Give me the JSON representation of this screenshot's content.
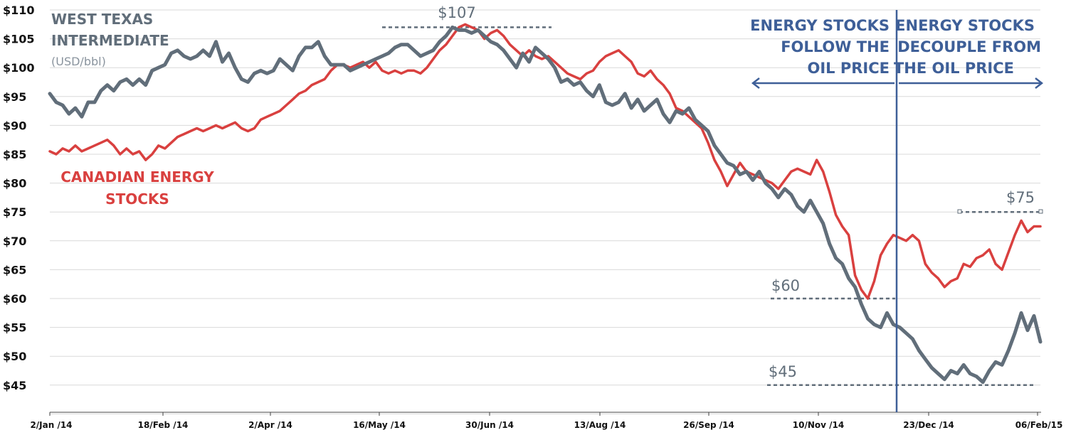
{
  "chart_data": {
    "type": "line",
    "ylim": [
      40,
      110
    ],
    "y_ticks": [
      "$110",
      "$105",
      "$100",
      "$95",
      "$90",
      "$85",
      "$80",
      "$75",
      "$70",
      "$65",
      "$60",
      "$55",
      "$50",
      "$45"
    ],
    "x_ticks": [
      "2/Jan /14",
      "18/Feb /14",
      "2/Apr /14",
      "16/May /14",
      "30/Jun /14",
      "13/Aug /14",
      "26/Sep /14",
      "10/Nov /14",
      "23/Dec /14",
      "06/Feb/15"
    ],
    "grid": true,
    "series": [
      {
        "name": "WEST TEXAS INTERMEDIATE",
        "unit": "(USD/bbl)",
        "color": "#616e7a",
        "values": [
          [
            0,
            95.5
          ],
          [
            2,
            94
          ],
          [
            4,
            93.5
          ],
          [
            6,
            92
          ],
          [
            8,
            93
          ],
          [
            10,
            91.5
          ],
          [
            12,
            94
          ],
          [
            14,
            94
          ],
          [
            16,
            96
          ],
          [
            18,
            97
          ],
          [
            20,
            96
          ],
          [
            22,
            97.5
          ],
          [
            24,
            98
          ],
          [
            26,
            97
          ],
          [
            28,
            98
          ],
          [
            30,
            97
          ],
          [
            32,
            99.5
          ],
          [
            34,
            100
          ],
          [
            36,
            100.5
          ],
          [
            38,
            102.5
          ],
          [
            40,
            103
          ],
          [
            42,
            102
          ],
          [
            44,
            101.5
          ],
          [
            46,
            102
          ],
          [
            48,
            103
          ],
          [
            50,
            102
          ],
          [
            52,
            104.5
          ],
          [
            54,
            101
          ],
          [
            56,
            102.5
          ],
          [
            58,
            100
          ],
          [
            60,
            98
          ],
          [
            62,
            97.5
          ],
          [
            64,
            99
          ],
          [
            66,
            99.5
          ],
          [
            68,
            99
          ],
          [
            70,
            99.5
          ],
          [
            72,
            101.5
          ],
          [
            74,
            100.5
          ],
          [
            76,
            99.5
          ],
          [
            78,
            102
          ],
          [
            80,
            103.5
          ],
          [
            82,
            103.5
          ],
          [
            84,
            104.5
          ],
          [
            86,
            102
          ],
          [
            88,
            100.5
          ],
          [
            90,
            100.5
          ],
          [
            92,
            100.5
          ],
          [
            94,
            99.5
          ],
          [
            96,
            100
          ],
          [
            98,
            100.5
          ],
          [
            100,
            101
          ],
          [
            102,
            101.5
          ],
          [
            104,
            102
          ],
          [
            106,
            102.5
          ],
          [
            108,
            103.5
          ],
          [
            110,
            104
          ],
          [
            112,
            104
          ],
          [
            114,
            103
          ],
          [
            116,
            102
          ],
          [
            118,
            102.5
          ],
          [
            120,
            103
          ],
          [
            122,
            104.5
          ],
          [
            124,
            105.5
          ],
          [
            126,
            107
          ],
          [
            128,
            106.5
          ],
          [
            130,
            106.5
          ],
          [
            132,
            106
          ],
          [
            134,
            106.5
          ],
          [
            136,
            105.5
          ],
          [
            138,
            104.5
          ],
          [
            140,
            104
          ],
          [
            142,
            103
          ],
          [
            144,
            101.5
          ],
          [
            146,
            100
          ],
          [
            148,
            102.5
          ],
          [
            150,
            101
          ],
          [
            152,
            103.5
          ],
          [
            154,
            102.5
          ],
          [
            156,
            101.5
          ],
          [
            158,
            100
          ],
          [
            160,
            97.5
          ],
          [
            162,
            98
          ],
          [
            164,
            97
          ],
          [
            166,
            97.5
          ],
          [
            168,
            96
          ],
          [
            170,
            95
          ],
          [
            172,
            97
          ],
          [
            174,
            94
          ],
          [
            176,
            93.5
          ],
          [
            178,
            94
          ],
          [
            180,
            95.5
          ],
          [
            182,
            93
          ],
          [
            184,
            94.5
          ],
          [
            186,
            92.5
          ],
          [
            188,
            93.5
          ],
          [
            190,
            94.5
          ],
          [
            192,
            92
          ],
          [
            194,
            90.5
          ],
          [
            196,
            92.5
          ],
          [
            198,
            92
          ],
          [
            200,
            93
          ],
          [
            202,
            91
          ],
          [
            204,
            90
          ],
          [
            206,
            89
          ],
          [
            208,
            86.5
          ],
          [
            210,
            85
          ],
          [
            212,
            83.5
          ],
          [
            214,
            83
          ],
          [
            216,
            81.5
          ],
          [
            218,
            82
          ],
          [
            220,
            80.5
          ],
          [
            222,
            82
          ],
          [
            224,
            80
          ],
          [
            226,
            79
          ],
          [
            228,
            77.5
          ],
          [
            230,
            79
          ],
          [
            232,
            78
          ],
          [
            234,
            76
          ],
          [
            236,
            75
          ],
          [
            238,
            77
          ],
          [
            240,
            75
          ],
          [
            242,
            73
          ],
          [
            244,
            69.5
          ],
          [
            246,
            67
          ],
          [
            248,
            66
          ],
          [
            250,
            63.5
          ],
          [
            252,
            62
          ],
          [
            254,
            59
          ],
          [
            256,
            56.5
          ],
          [
            258,
            55.5
          ],
          [
            260,
            55
          ],
          [
            262,
            57.5
          ],
          [
            264,
            55.5
          ],
          [
            266,
            55
          ],
          [
            268,
            54
          ],
          [
            270,
            53
          ],
          [
            272,
            51
          ],
          [
            274,
            49.5
          ],
          [
            276,
            48
          ],
          [
            278,
            47
          ],
          [
            280,
            46
          ],
          [
            282,
            47.5
          ],
          [
            284,
            47
          ],
          [
            286,
            48.5
          ],
          [
            288,
            47
          ],
          [
            290,
            46.5
          ],
          [
            292,
            45.5
          ],
          [
            294,
            47.5
          ],
          [
            296,
            49
          ],
          [
            298,
            48.5
          ],
          [
            300,
            51
          ],
          [
            302,
            54
          ],
          [
            304,
            57.5
          ],
          [
            306,
            54.5
          ],
          [
            308,
            57
          ],
          [
            310,
            52.5
          ]
        ]
      },
      {
        "name": "CANADIAN ENERGY STOCKS",
        "color": "#d9403f",
        "values": [
          [
            0,
            85.5
          ],
          [
            2,
            85
          ],
          [
            4,
            86
          ],
          [
            6,
            85.5
          ],
          [
            8,
            86.5
          ],
          [
            10,
            85.5
          ],
          [
            12,
            86
          ],
          [
            14,
            86.5
          ],
          [
            16,
            87
          ],
          [
            18,
            87.5
          ],
          [
            20,
            86.5
          ],
          [
            22,
            85
          ],
          [
            24,
            86
          ],
          [
            26,
            85
          ],
          [
            28,
            85.5
          ],
          [
            30,
            84
          ],
          [
            32,
            85
          ],
          [
            34,
            86.5
          ],
          [
            36,
            86
          ],
          [
            38,
            87
          ],
          [
            40,
            88
          ],
          [
            42,
            88.5
          ],
          [
            44,
            89
          ],
          [
            46,
            89.5
          ],
          [
            48,
            89
          ],
          [
            50,
            89.5
          ],
          [
            52,
            90
          ],
          [
            54,
            89.5
          ],
          [
            56,
            90
          ],
          [
            58,
            90.5
          ],
          [
            60,
            89.5
          ],
          [
            62,
            89
          ],
          [
            64,
            89.5
          ],
          [
            66,
            91
          ],
          [
            68,
            91.5
          ],
          [
            70,
            92
          ],
          [
            72,
            92.5
          ],
          [
            74,
            93.5
          ],
          [
            76,
            94.5
          ],
          [
            78,
            95.5
          ],
          [
            80,
            96
          ],
          [
            82,
            97
          ],
          [
            84,
            97.5
          ],
          [
            86,
            98
          ],
          [
            88,
            99.5
          ],
          [
            90,
            100.5
          ],
          [
            92,
            100.5
          ],
          [
            94,
            100
          ],
          [
            96,
            100.5
          ],
          [
            98,
            101
          ],
          [
            100,
            100
          ],
          [
            102,
            101
          ],
          [
            104,
            99.5
          ],
          [
            106,
            99
          ],
          [
            108,
            99.5
          ],
          [
            110,
            99
          ],
          [
            112,
            99.5
          ],
          [
            114,
            99.5
          ],
          [
            116,
            99
          ],
          [
            118,
            100
          ],
          [
            120,
            101.5
          ],
          [
            122,
            103
          ],
          [
            124,
            104
          ],
          [
            126,
            105.5
          ],
          [
            128,
            107
          ],
          [
            130,
            107.5
          ],
          [
            132,
            107
          ],
          [
            134,
            106.5
          ],
          [
            136,
            105
          ],
          [
            138,
            106
          ],
          [
            140,
            106.5
          ],
          [
            142,
            105.5
          ],
          [
            144,
            104
          ],
          [
            146,
            103
          ],
          [
            148,
            102
          ],
          [
            150,
            103
          ],
          [
            152,
            102
          ],
          [
            154,
            101.5
          ],
          [
            156,
            102
          ],
          [
            158,
            101
          ],
          [
            160,
            100
          ],
          [
            162,
            99
          ],
          [
            164,
            98.5
          ],
          [
            166,
            98
          ],
          [
            168,
            99
          ],
          [
            170,
            99.5
          ],
          [
            172,
            101
          ],
          [
            174,
            102
          ],
          [
            176,
            102.5
          ],
          [
            178,
            103
          ],
          [
            180,
            102
          ],
          [
            182,
            101
          ],
          [
            184,
            99
          ],
          [
            186,
            98.5
          ],
          [
            188,
            99.5
          ],
          [
            190,
            98
          ],
          [
            192,
            97
          ],
          [
            194,
            95.5
          ],
          [
            196,
            93
          ],
          [
            198,
            92.5
          ],
          [
            200,
            91.5
          ],
          [
            202,
            90.5
          ],
          [
            204,
            89.5
          ],
          [
            206,
            87
          ],
          [
            208,
            84
          ],
          [
            210,
            82
          ],
          [
            212,
            79.5
          ],
          [
            214,
            81.5
          ],
          [
            216,
            83.5
          ],
          [
            218,
            82
          ],
          [
            220,
            81.5
          ],
          [
            222,
            81
          ],
          [
            224,
            80.5
          ],
          [
            226,
            80
          ],
          [
            228,
            79
          ],
          [
            230,
            80.5
          ],
          [
            232,
            82
          ],
          [
            234,
            82.5
          ],
          [
            236,
            82
          ],
          [
            238,
            81.5
          ],
          [
            240,
            84
          ],
          [
            242,
            82
          ],
          [
            244,
            78.5
          ],
          [
            246,
            74.5
          ],
          [
            248,
            72.5
          ],
          [
            250,
            71
          ],
          [
            252,
            64
          ],
          [
            254,
            61.5
          ],
          [
            256,
            60
          ],
          [
            258,
            63
          ],
          [
            260,
            67.5
          ],
          [
            262,
            69.5
          ],
          [
            264,
            71
          ],
          [
            266,
            70.5
          ],
          [
            268,
            70
          ],
          [
            270,
            71
          ],
          [
            272,
            70
          ],
          [
            274,
            66
          ],
          [
            276,
            64.5
          ],
          [
            278,
            63.5
          ],
          [
            280,
            62
          ],
          [
            282,
            63
          ],
          [
            284,
            63.5
          ],
          [
            286,
            66
          ],
          [
            288,
            65.5
          ],
          [
            290,
            67
          ],
          [
            292,
            67.5
          ],
          [
            294,
            68.5
          ],
          [
            296,
            66
          ],
          [
            298,
            65
          ],
          [
            300,
            68
          ],
          [
            302,
            71
          ],
          [
            304,
            73.5
          ],
          [
            306,
            71.5
          ],
          [
            308,
            72.5
          ],
          [
            310,
            72.5
          ]
        ]
      }
    ],
    "annotations": [
      {
        "text": "$107",
        "y": 107
      },
      {
        "text": "$75",
        "y": 75
      },
      {
        "text": "$60",
        "y": 60
      },
      {
        "text": "$45",
        "y": 45
      }
    ],
    "phases": [
      {
        "text": [
          "ENERGY STOCKS",
          "FOLLOW THE",
          "OIL PRICE"
        ]
      },
      {
        "text": [
          "ENERGY STOCKS",
          "DECOUPLE FROM",
          "THE OIL PRICE"
        ]
      }
    ]
  }
}
